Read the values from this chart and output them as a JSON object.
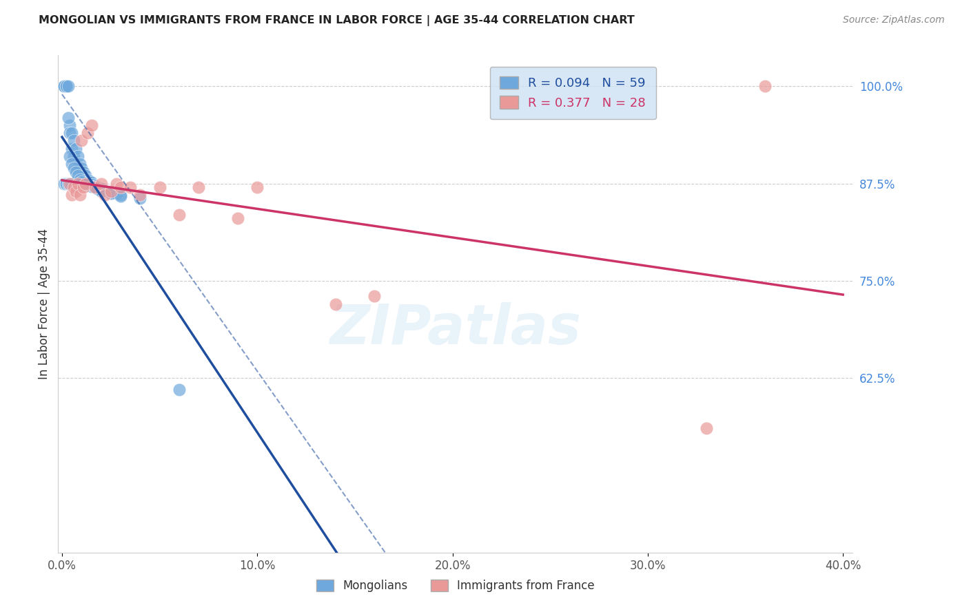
{
  "title": "MONGOLIAN VS IMMIGRANTS FROM FRANCE IN LABOR FORCE | AGE 35-44 CORRELATION CHART",
  "source": "Source: ZipAtlas.com",
  "ylabel": "In Labor Force | Age 35-44",
  "ylim": [
    0.4,
    1.04
  ],
  "xlim": [
    -0.002,
    0.405
  ],
  "mongolian_R": 0.094,
  "mongolian_N": 59,
  "france_R": 0.377,
  "france_N": 28,
  "mongolian_color": "#6fa8dc",
  "france_color": "#ea9999",
  "mongolian_line_color": "#1f4e9e",
  "france_line_color": "#cc3366",
  "legend_box_color": "#cfe2f3",
  "mongolian_x": [
    0.001,
    0.001,
    0.001,
    0.001,
    0.002,
    0.002,
    0.002,
    0.002,
    0.002,
    0.003,
    0.003,
    0.003,
    0.003,
    0.004,
    0.004,
    0.004,
    0.005,
    0.005,
    0.005,
    0.006,
    0.006,
    0.006,
    0.007,
    0.007,
    0.008,
    0.008,
    0.009,
    0.009,
    0.01,
    0.01,
    0.011,
    0.012,
    0.013,
    0.014,
    0.015,
    0.016,
    0.017,
    0.018,
    0.02,
    0.022,
    0.025,
    0.028,
    0.03,
    0.003,
    0.004,
    0.005,
    0.006,
    0.007,
    0.008,
    0.009,
    0.01,
    0.012,
    0.015,
    0.018,
    0.02,
    0.025,
    0.03,
    0.04,
    0.06
  ],
  "mongolian_y": [
    1.0,
    1.0,
    1.0,
    0.875,
    1.0,
    1.0,
    0.875,
    0.875,
    0.875,
    1.0,
    0.875,
    0.875,
    0.875,
    0.95,
    0.94,
    0.875,
    0.94,
    0.92,
    0.875,
    0.93,
    0.91,
    0.875,
    0.92,
    0.875,
    0.91,
    0.875,
    0.9,
    0.875,
    0.895,
    0.875,
    0.89,
    0.885,
    0.88,
    0.878,
    0.876,
    0.874,
    0.872,
    0.87,
    0.868,
    0.866,
    0.864,
    0.862,
    0.86,
    0.96,
    0.91,
    0.9,
    0.895,
    0.89,
    0.885,
    0.88,
    0.877,
    0.874,
    0.871,
    0.868,
    0.865,
    0.862,
    0.859,
    0.856,
    0.61
  ],
  "france_x": [
    0.004,
    0.005,
    0.006,
    0.007,
    0.008,
    0.009,
    0.01,
    0.011,
    0.012,
    0.013,
    0.015,
    0.017,
    0.02,
    0.022,
    0.025,
    0.028,
    0.03,
    0.035,
    0.04,
    0.05,
    0.06,
    0.07,
    0.09,
    0.1,
    0.14,
    0.16,
    0.33,
    0.36
  ],
  "france_y": [
    0.875,
    0.86,
    0.87,
    0.865,
    0.875,
    0.86,
    0.93,
    0.87,
    0.875,
    0.94,
    0.95,
    0.87,
    0.875,
    0.86,
    0.865,
    0.875,
    0.87,
    0.87,
    0.86,
    0.87,
    0.835,
    0.87,
    0.83,
    0.87,
    0.72,
    0.73,
    0.56,
    1.0
  ],
  "watermark": "ZIPatlas",
  "grid_color": "#cccccc",
  "right_tick_color": "#4488dd"
}
